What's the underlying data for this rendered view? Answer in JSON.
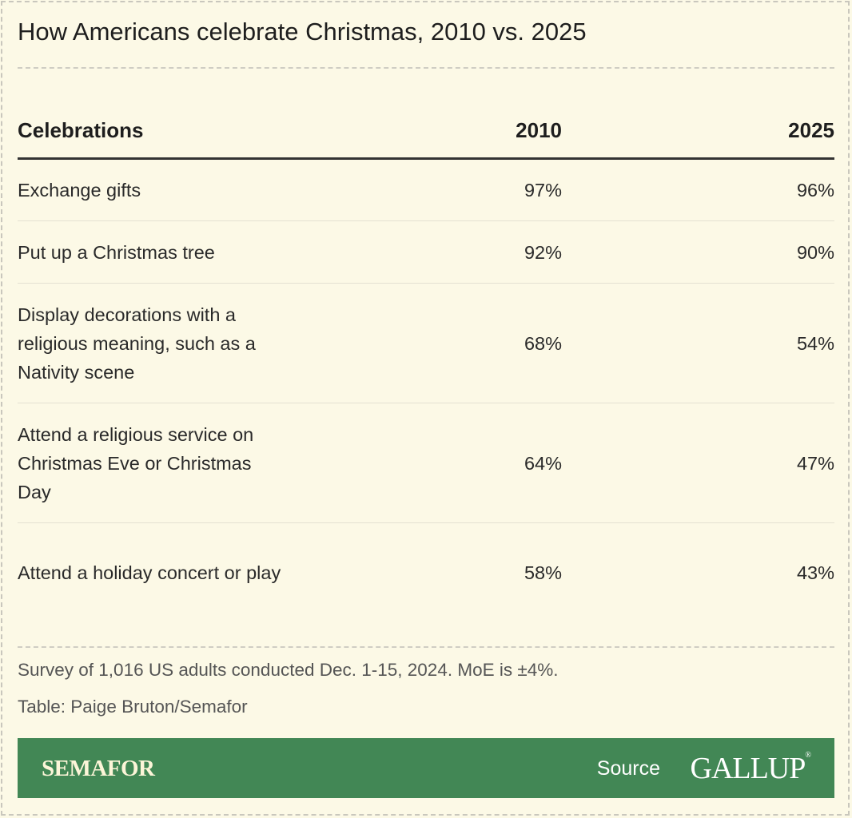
{
  "title": "How Americans celebrate Christmas, 2010 vs. 2025",
  "chart_data": {
    "type": "table",
    "columns": [
      "Celebrations",
      "2010",
      "2025"
    ],
    "rows": [
      {
        "label": "Exchange gifts",
        "v2010": "97%",
        "v2025": "96%"
      },
      {
        "label": "Put up a Christmas tree",
        "v2010": "92%",
        "v2025": "90%"
      },
      {
        "label": "Display decorations with a religious meaning, such as a Nativity scene",
        "v2010": "68%",
        "v2025": "54%"
      },
      {
        "label": "Attend a religious service on Christmas Eve or Christmas Day",
        "v2010": "64%",
        "v2025": "47%"
      },
      {
        "label": "Attend a holiday concert or play",
        "v2010": "58%",
        "v2025": "43%"
      }
    ]
  },
  "footer": {
    "note": "Survey of 1,016 US adults conducted Dec. 1-15, 2024. MoE is ±4%.",
    "credit": "Table: Paige Bruton/Semafor"
  },
  "brand_bar": {
    "logo": "SEMAFOR",
    "source_label": "Source",
    "source_logo": "GALLUP",
    "color": "#428755"
  }
}
